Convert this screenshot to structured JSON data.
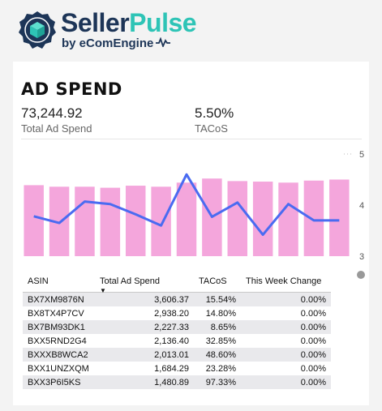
{
  "header": {
    "brand_part1": "Seller",
    "brand_part2": "Pulse",
    "byline": "by eComEngine",
    "logo_icon": "cube-gear-icon",
    "colors": {
      "navy": "#1d3557",
      "teal": "#2ec4b6"
    }
  },
  "card": {
    "title": "AD SPEND",
    "kpis": [
      {
        "value": "73,244.92",
        "label": "Total Ad Spend"
      },
      {
        "value": "5.50%",
        "label": "TACoS"
      }
    ]
  },
  "chart_data": {
    "type": "bar",
    "title": "",
    "series": [
      {
        "type": "bar",
        "values": [
          4.39,
          4.36,
          4.36,
          4.34,
          4.38,
          4.36,
          4.44,
          4.52,
          4.47,
          4.46,
          4.44,
          4.48,
          4.5
        ],
        "color": "#f4a6dc"
      },
      {
        "type": "line",
        "values": [
          3.78,
          3.65,
          4.07,
          4.02,
          3.82,
          3.6,
          4.6,
          3.77,
          4.05,
          3.42,
          4.02,
          3.7,
          3.7
        ],
        "color": "#4a6bf1"
      }
    ],
    "right_axis": {
      "ticks": [
        "5",
        "4",
        "3"
      ],
      "ylim": [
        3,
        5
      ]
    },
    "grid": false,
    "legend": "none"
  },
  "table": {
    "columns": [
      "ASIN",
      "Total Ad Spend",
      "TACoS",
      "This Week Change"
    ],
    "sort_column": "Total Ad Spend",
    "sort_direction": "descending",
    "rows": [
      [
        "BX7XM9876N",
        "3,606.37",
        "15.54%",
        "0.00%"
      ],
      [
        "BX8TX4P7CV",
        "2,938.20",
        "14.80%",
        "0.00%"
      ],
      [
        "BX7BM93DK1",
        "2,227.33",
        "8.65%",
        "0.00%"
      ],
      [
        "BXX5RND2G4",
        "2,136.40",
        "32.85%",
        "0.00%"
      ],
      [
        "BXXXB8WCA2",
        "2,013.01",
        "48.60%",
        "0.00%"
      ],
      [
        "BXX1UNZXQM",
        "1,684.29",
        "23.28%",
        "0.00%"
      ],
      [
        "BXX3P6I5KS",
        "1,480.89",
        "97.33%",
        "0.00%"
      ]
    ]
  }
}
